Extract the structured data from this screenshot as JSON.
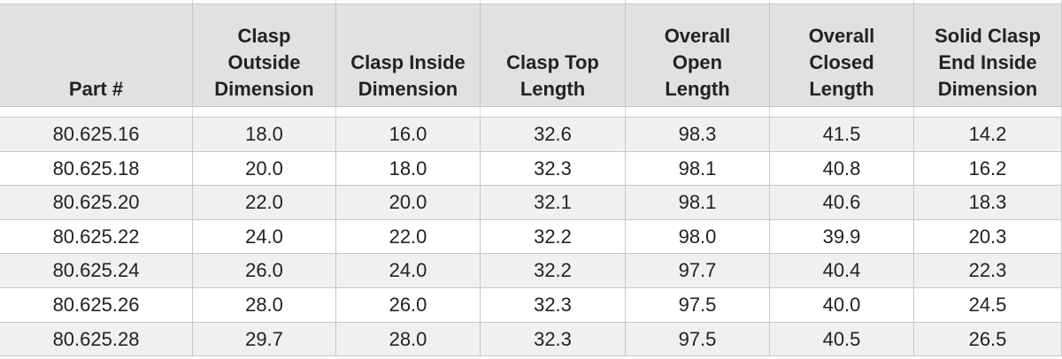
{
  "table": {
    "header": [
      [
        "Part #"
      ],
      [
        "Clasp",
        "Outside",
        "Dimension"
      ],
      [
        "Clasp Inside",
        "Dimension"
      ],
      [
        "Clasp Top",
        "Length"
      ],
      [
        "Overall",
        "Open",
        "Length"
      ],
      [
        "Overall",
        "Closed",
        "Length"
      ],
      [
        "Solid Clasp",
        "End Inside",
        "Dimension"
      ]
    ],
    "rows": [
      [
        "80.625.16",
        "18.0",
        "16.0",
        "32.6",
        "98.3",
        "41.5",
        "14.2"
      ],
      [
        "80.625.18",
        "20.0",
        "18.0",
        "32.3",
        "98.1",
        "40.8",
        "16.2"
      ],
      [
        "80.625.20",
        "22.0",
        "20.0",
        "32.1",
        "98.1",
        "40.6",
        "18.3"
      ],
      [
        "80.625.22",
        "24.0",
        "22.0",
        "32.2",
        "98.0",
        "39.9",
        "20.3"
      ],
      [
        "80.625.24",
        "26.0",
        "24.0",
        "32.2",
        "97.7",
        "40.4",
        "22.3"
      ],
      [
        "80.625.26",
        "28.0",
        "26.0",
        "32.3",
        "97.5",
        "40.0",
        "24.5"
      ],
      [
        "80.625.28",
        "29.7",
        "28.0",
        "32.3",
        "97.5",
        "40.5",
        "26.5"
      ]
    ]
  }
}
